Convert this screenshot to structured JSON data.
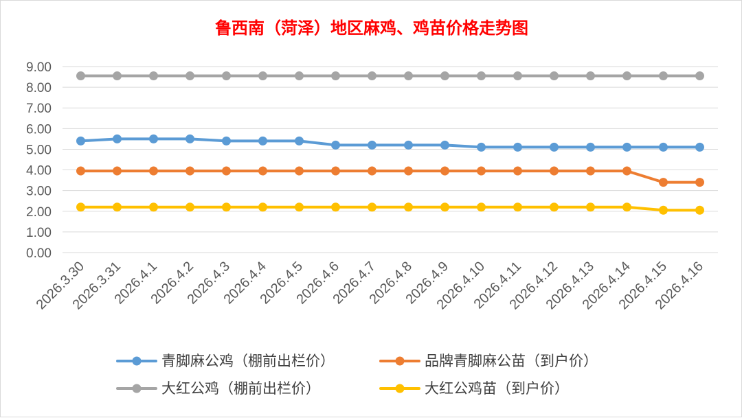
{
  "chart_data": {
    "type": "line",
    "title": "鲁西南（菏泽）地区麻鸡、鸡苗价格走势图",
    "title_color": "#ff0000",
    "categories": [
      "2026.3.30",
      "2026.3.31",
      "2026.4.1",
      "2026.4.2",
      "2026.4.3",
      "2026.4.4",
      "2026.4.5",
      "2026.4.6",
      "2026.4.7",
      "2026.4.8",
      "2026.4.9",
      "2026.4.10",
      "2026.4.11",
      "2026.4.12",
      "2026.4.13",
      "2026.4.14",
      "2026.4.15",
      "2026.4.16"
    ],
    "ylim": [
      0,
      9
    ],
    "yticks": [
      "0.00",
      "1.00",
      "2.00",
      "3.00",
      "4.00",
      "5.00",
      "6.00",
      "7.00",
      "8.00",
      "9.00"
    ],
    "grid": true,
    "legend_position": "bottom",
    "series": [
      {
        "name": "青脚麻公鸡（棚前出栏价）",
        "color": "#5b9bd5",
        "values": [
          5.4,
          5.5,
          5.5,
          5.5,
          5.4,
          5.4,
          5.4,
          5.2,
          5.2,
          5.2,
          5.2,
          5.1,
          5.1,
          5.1,
          5.1,
          5.1,
          5.1,
          5.1
        ]
      },
      {
        "name": "品牌青脚麻公苗（到户价）",
        "color": "#ed7d31",
        "values": [
          3.95,
          3.95,
          3.95,
          3.95,
          3.95,
          3.95,
          3.95,
          3.95,
          3.95,
          3.95,
          3.95,
          3.95,
          3.95,
          3.95,
          3.95,
          3.95,
          3.4,
          3.4
        ]
      },
      {
        "name": "大红公鸡（棚前出栏价）",
        "color": "#a5a5a5",
        "values": [
          8.55,
          8.55,
          8.55,
          8.55,
          8.55,
          8.55,
          8.55,
          8.55,
          8.55,
          8.55,
          8.55,
          8.55,
          8.55,
          8.55,
          8.55,
          8.55,
          8.55,
          8.55
        ]
      },
      {
        "name": "大红公鸡苗（到户价）",
        "color": "#ffc000",
        "values": [
          2.2,
          2.2,
          2.2,
          2.2,
          2.2,
          2.2,
          2.2,
          2.2,
          2.2,
          2.2,
          2.2,
          2.2,
          2.2,
          2.2,
          2.2,
          2.2,
          2.05,
          2.05
        ]
      }
    ]
  }
}
